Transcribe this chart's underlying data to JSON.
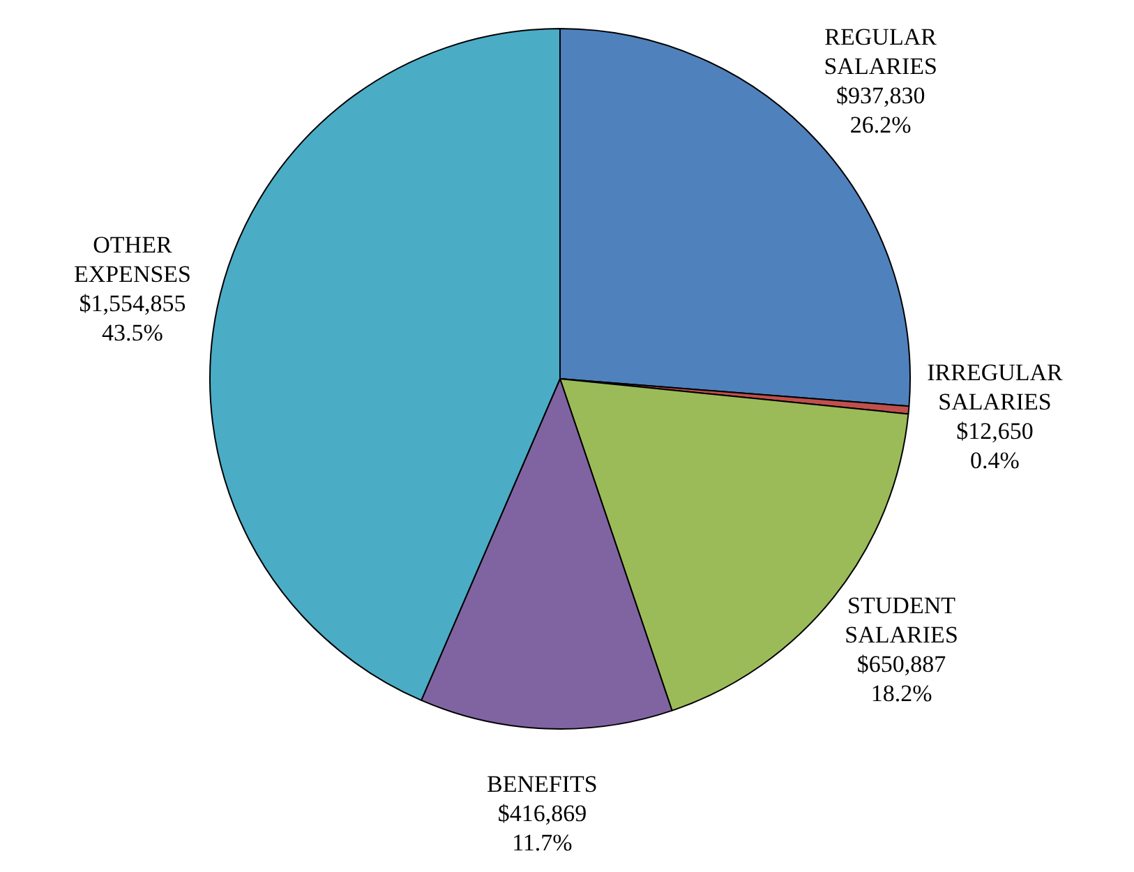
{
  "chart_data": {
    "type": "pie",
    "categories": [
      "REGULAR SALARIES",
      "IRREGULAR SALARIES",
      "STUDENT SALARIES",
      "BENEFITS",
      "OTHER EXPENSES"
    ],
    "values": [
      937830,
      12650,
      650887,
      416869,
      1554855
    ],
    "value_labels": [
      "$937,830\n26.2%",
      "$12,650\n0.4%",
      "$650,887\n18.2%",
      "$416,869\n11.7%",
      "$1,554,855\n43.5%"
    ],
    "colors": [
      "#4f81bd",
      "#c0504d",
      "#9bbb59",
      "#8064a2",
      "#4bacc6"
    ],
    "legend": false
  }
}
